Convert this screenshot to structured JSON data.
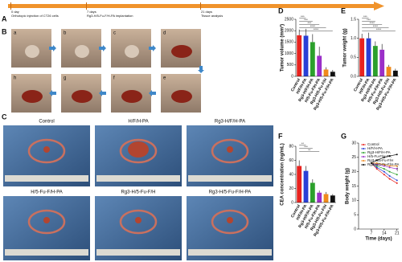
{
  "panels": [
    "A",
    "B",
    "C",
    "D",
    "E",
    "F",
    "G"
  ],
  "timeline": {
    "steps": [
      {
        "time": "0 day",
        "event": "Orthotopic injection of CT26 cells"
      },
      {
        "time": "7 days",
        "event": "Rg3-H/5-Fu-F/H-PA implantation"
      },
      {
        "time": "21 days",
        "event": "Tissue analysis"
      }
    ]
  },
  "surgery_photos": [
    "a",
    "b",
    "c",
    "d",
    "e",
    "f",
    "g",
    "h"
  ],
  "tissue_photos": [
    "Control",
    "H/F/H-PA",
    "Rg3-H/F/H-PA",
    "H/5-Fu-F/H-PA",
    "Rg3-H/5-Fu-F/H",
    "Rg3-H/5-Fu-F/H-PA"
  ],
  "chart_data": [
    {
      "type": "bar",
      "ylabel": "Tumor volume (mm³)",
      "categories": [
        "Control",
        "H/F/H-PA",
        "Rg3-H/F/H-PA",
        "H/5-Fu-F/H-PA",
        "Rg3-H/5-Fu-F/H",
        "Rg3-H/5-Fu-F/H-PA"
      ],
      "values": [
        1800,
        1780,
        1500,
        900,
        300,
        200
      ],
      "errors": [
        250,
        300,
        350,
        400,
        100,
        80
      ],
      "colors": [
        "#e8231f",
        "#2a3fd6",
        "#2ca02c",
        "#9b30c8",
        "#f08a1c",
        "#111111"
      ],
      "ylim": [
        0,
        2500
      ],
      "yticks": [
        0,
        500,
        1000,
        1500,
        2000,
        2500
      ],
      "annotations": [
        "***",
        "***",
        "***",
        "****",
        "****"
      ]
    },
    {
      "type": "bar",
      "ylabel": "Tumor weight (g)",
      "categories": [
        "Control",
        "H/F/H-PA",
        "Rg3-H/F/H-PA",
        "H/5-Fu-F/H-PA",
        "Rg3-H/5-Fu-F/H",
        "Rg3-H/5-Fu-F/H-PA"
      ],
      "values": [
        1.0,
        1.0,
        0.8,
        0.7,
        0.25,
        0.15
      ],
      "errors": [
        0.12,
        0.15,
        0.12,
        0.15,
        0.05,
        0.05
      ],
      "colors": [
        "#e8231f",
        "#2a3fd6",
        "#2ca02c",
        "#9b30c8",
        "#f08a1c",
        "#111111"
      ],
      "ylim": [
        0,
        1.5
      ],
      "yticks": [
        {
          "value": 0,
          "label": "0.0"
        },
        0.5,
        {
          "value": 1,
          "label": "1.0"
        },
        1.5
      ],
      "annotations": [
        "***",
        "***",
        "****",
        "****",
        "****"
      ]
    },
    {
      "type": "bar",
      "ylabel": "CEA concentration (ng/mL)",
      "categories": [
        "Control",
        "H/F/H-PA",
        "Rg3-H/F/H-PA",
        "H/5-Fu-F/H-PA",
        "Rg3-H/5-Fu-F/H",
        "Rg3-H/5-Fu-F/H-PA"
      ],
      "values": [
        52,
        45,
        28,
        14,
        12,
        10
      ],
      "errors": [
        8,
        7,
        5,
        3,
        3,
        2
      ],
      "colors": [
        "#e8231f",
        "#2a3fd6",
        "#2ca02c",
        "#9b30c8",
        "#f08a1c",
        "#111111"
      ],
      "ylim": [
        0,
        80
      ],
      "yticks": [
        0,
        20,
        40,
        60,
        80
      ],
      "annotations": [
        "**",
        "***",
        "**"
      ]
    },
    {
      "type": "line",
      "xlabel": "Time (days)",
      "ylabel": "Body weight (g)",
      "x": [
        7,
        10,
        14,
        17,
        21
      ],
      "xlim": [
        0,
        22
      ],
      "xticks": [
        7,
        14,
        21
      ],
      "ylim": [
        0,
        30
      ],
      "yticks": [
        0,
        5,
        10,
        15,
        20,
        25,
        30
      ],
      "series": [
        {
          "name": "Control",
          "color": "#e8231f",
          "values": [
            23,
            21,
            19,
            17.5,
            16
          ]
        },
        {
          "name": "H/F/H-PA",
          "color": "#2a3fd6",
          "values": [
            23,
            21.5,
            20,
            18.5,
            17
          ]
        },
        {
          "name": "Rg3-H/F/H-PA",
          "color": "#2ca02c",
          "values": [
            23,
            22,
            21,
            20,
            19
          ]
        },
        {
          "name": "H/5-Fu-F/H-PA",
          "color": "#9b30c8",
          "values": [
            23,
            22.5,
            22,
            21.5,
            21
          ]
        },
        {
          "name": "Rg3-H/5-Fu-F/H",
          "color": "#f08a1c",
          "values": [
            23,
            23,
            22.5,
            22,
            22
          ]
        },
        {
          "name": "Rg3-H/5-Fu-F/H-PA",
          "color": "#111111",
          "values": [
            23,
            24,
            25,
            25.5,
            26
          ]
        }
      ],
      "annotations": [
        "****"
      ]
    }
  ]
}
